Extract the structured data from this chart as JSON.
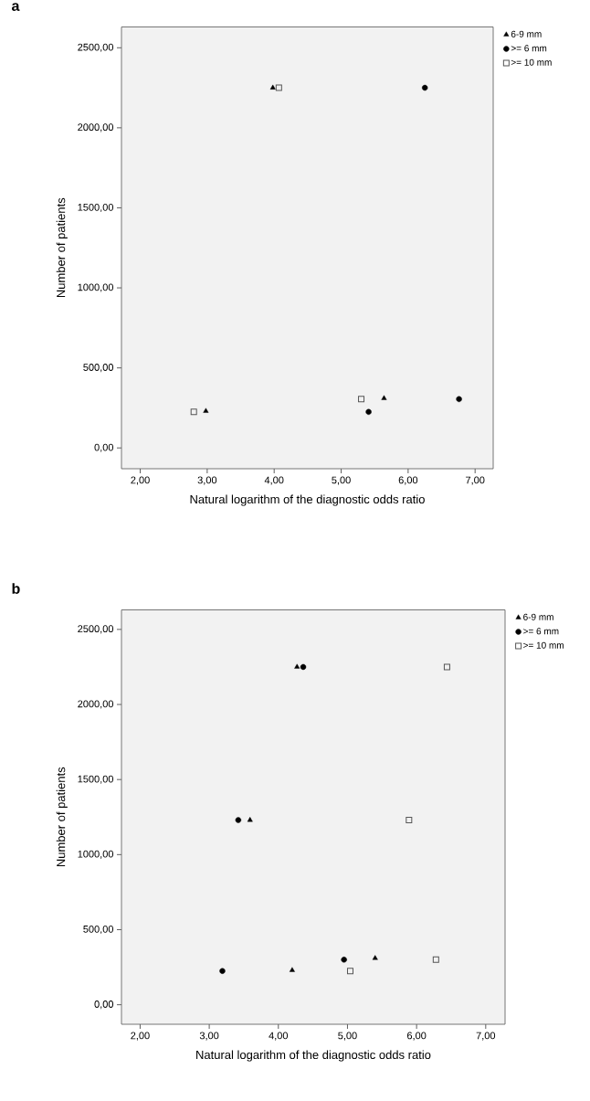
{
  "chart_data": [
    {
      "type": "scatter",
      "title": "a",
      "xlabel": "Natural logarithm of the diagnostic odds ratio",
      "ylabel": "Number of patients",
      "xlim": [
        1.72,
        7.27
      ],
      "ylim": [
        -130,
        2630
      ],
      "xticks": [
        {
          "value": 2,
          "label": "2,00"
        },
        {
          "value": 3,
          "label": "3,00"
        },
        {
          "value": 4,
          "label": "4,00"
        },
        {
          "value": 5,
          "label": "5,00"
        },
        {
          "value": 6,
          "label": "6,00"
        },
        {
          "value": 7,
          "label": "7,00"
        }
      ],
      "yticks": [
        {
          "value": 0,
          "label": "0,00"
        },
        {
          "value": 500,
          "label": "500,00"
        },
        {
          "value": 1000,
          "label": "1000,00"
        },
        {
          "value": 1500,
          "label": "1500,00"
        },
        {
          "value": 2000,
          "label": "2000,00"
        },
        {
          "value": 2500,
          "label": "2500,00"
        }
      ],
      "legend": "top right",
      "grid": false,
      "series": [
        {
          "name": "6-9 mm",
          "color": "#000000",
          "marker": "triangle",
          "x": [
            2.98,
            3.98,
            5.64
          ],
          "values": [
            230,
            2250,
            310
          ]
        },
        {
          "name": ">= 6 mm",
          "color": "#000000",
          "marker": "circle",
          "x": [
            6.25,
            5.41,
            6.76
          ],
          "values": [
            2250,
            225,
            305
          ]
        },
        {
          "name": ">= 10 mm",
          "color": "#555555",
          "marker": "square",
          "x": [
            2.8,
            4.07,
            5.3
          ],
          "values": [
            225,
            2250,
            305
          ]
        }
      ]
    },
    {
      "type": "scatter",
      "title": "b",
      "xlabel": "Natural logarithm of the diagnostic odds ratio",
      "ylabel": "Number of patients",
      "xlim": [
        1.73,
        7.28
      ],
      "ylim": [
        -130,
        2630
      ],
      "xticks": [
        {
          "value": 2,
          "label": "2,00"
        },
        {
          "value": 3,
          "label": "3,00"
        },
        {
          "value": 4,
          "label": "4,00"
        },
        {
          "value": 5,
          "label": "5,00"
        },
        {
          "value": 6,
          "label": "6,00"
        },
        {
          "value": 7,
          "label": "7,00"
        }
      ],
      "yticks": [
        {
          "value": 0,
          "label": "0,00"
        },
        {
          "value": 500,
          "label": "500,00"
        },
        {
          "value": 1000,
          "label": "1000,00"
        },
        {
          "value": 1500,
          "label": "1500,00"
        },
        {
          "value": 2000,
          "label": "2000,00"
        },
        {
          "value": 2500,
          "label": "2500,00"
        }
      ],
      "legend": "top right",
      "grid": false,
      "series": [
        {
          "name": "6-9 mm",
          "color": "#000000",
          "marker": "triangle",
          "x": [
            4.27,
            3.59,
            4.2,
            5.4
          ],
          "values": [
            2250,
            1230,
            230,
            310
          ]
        },
        {
          "name": ">= 6 mm",
          "color": "#000000",
          "marker": "circle",
          "x": [
            4.36,
            3.42,
            3.19,
            4.95
          ],
          "values": [
            2250,
            1230,
            225,
            300
          ]
        },
        {
          "name": ">= 10 mm",
          "color": "#555555",
          "marker": "square",
          "x": [
            6.44,
            5.89,
            5.04,
            6.28
          ],
          "values": [
            2250,
            1230,
            225,
            300
          ]
        }
      ]
    }
  ]
}
